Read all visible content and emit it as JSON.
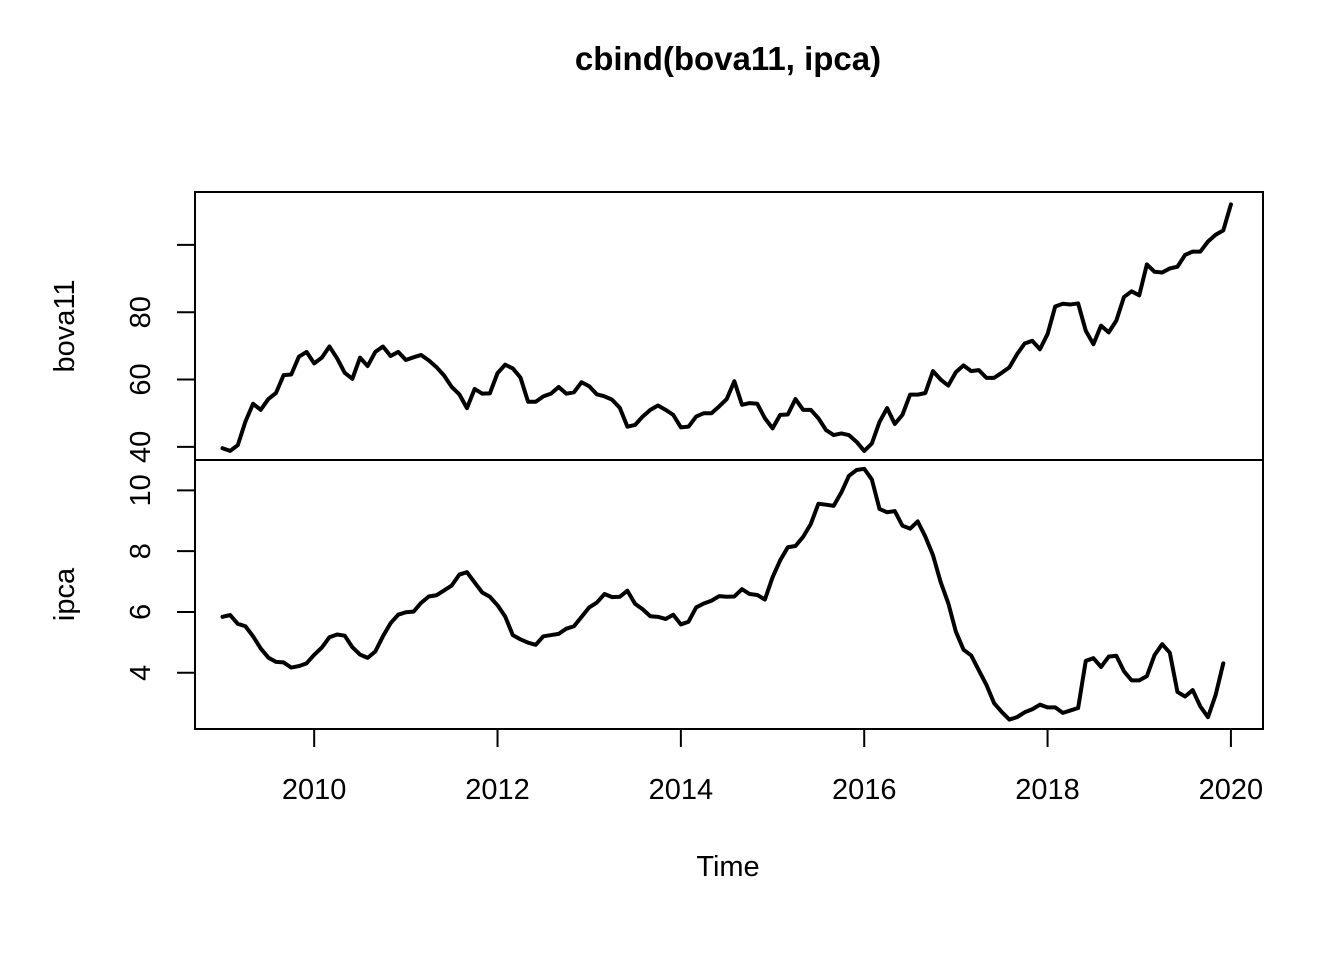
{
  "chart_data": {
    "type": "line",
    "title": "cbind(bova11, ipca)",
    "xlabel": "Time",
    "x_ticks": [
      2010,
      2012,
      2014,
      2016,
      2018,
      2020
    ],
    "xlim": [
      2008.7,
      2020.35
    ],
    "x_start": 2009.0,
    "x_step": 0.08333333,
    "panels": [
      {
        "name": "bova11",
        "ylabel": "bova11",
        "y_ticks": [
          40,
          60,
          80,
          100
        ],
        "y_tick_labels": [
          "40",
          "60",
          "80",
          ""
        ],
        "ylim": [
          36.1,
          115.7
        ],
        "values": [
          39.6,
          38.8,
          40.5,
          47.5,
          52.8,
          51.0,
          54.2,
          56.0,
          61.3,
          61.5,
          66.8,
          68.2,
          64.8,
          66.5,
          69.8,
          66.3,
          62.0,
          60.2,
          66.5,
          64.0,
          68.2,
          69.8,
          67.0,
          68.2,
          65.8,
          66.6,
          67.3,
          65.7,
          63.7,
          61.2,
          57.8,
          55.6,
          51.5,
          57.2,
          55.8,
          55.9,
          61.9,
          64.4,
          63.3,
          60.6,
          53.4,
          53.4,
          55.0,
          55.8,
          57.8,
          55.8,
          56.2,
          59.2,
          58.0,
          55.6,
          55.0,
          54.0,
          51.6,
          46.0,
          46.5,
          49.0,
          51.0,
          52.3,
          51.0,
          49.5,
          45.8,
          46.0,
          49.0,
          50.0,
          50.0,
          52.0,
          54.2,
          59.5,
          52.5,
          53.0,
          52.8,
          48.5,
          45.5,
          49.5,
          49.6,
          54.2,
          51.0,
          51.0,
          48.5,
          45.0,
          43.5,
          44.0,
          43.5,
          41.5,
          38.8,
          41.0,
          47.4,
          51.5,
          46.8,
          49.5,
          55.5,
          55.5,
          56.0,
          62.5,
          60.0,
          58.2,
          62.2,
          64.2,
          62.5,
          62.8,
          60.5,
          60.5,
          62.0,
          63.6,
          67.5,
          70.7,
          71.5,
          69.0,
          73.5,
          81.7,
          82.5,
          82.3,
          82.6,
          74.5,
          70.5,
          76.0,
          74.0,
          77.5,
          84.5,
          86.2,
          85.0,
          94.2,
          92.0,
          91.8,
          93.0,
          93.5,
          97.0,
          98.0,
          98.0,
          101.0,
          103.0,
          104.3,
          112.0
        ]
      },
      {
        "name": "ipca",
        "ylabel": "ipca",
        "y_ticks": [
          4,
          6,
          8,
          10
        ],
        "y_tick_labels": [
          "4",
          "6",
          "8",
          "10"
        ],
        "ylim": [
          2.15,
          11.0
        ],
        "values": [
          5.84,
          5.9,
          5.61,
          5.53,
          5.2,
          4.8,
          4.5,
          4.36,
          4.34,
          4.17,
          4.22,
          4.31,
          4.59,
          4.83,
          5.17,
          5.26,
          5.22,
          4.84,
          4.6,
          4.49,
          4.7,
          5.2,
          5.63,
          5.91,
          5.99,
          6.01,
          6.3,
          6.51,
          6.55,
          6.71,
          6.87,
          7.23,
          7.31,
          6.97,
          6.64,
          6.5,
          6.22,
          5.85,
          5.24,
          5.1,
          4.99,
          4.92,
          5.2,
          5.24,
          5.28,
          5.45,
          5.53,
          5.84,
          6.15,
          6.31,
          6.59,
          6.49,
          6.5,
          6.7,
          6.27,
          6.09,
          5.86,
          5.84,
          5.77,
          5.91,
          5.59,
          5.68,
          6.15,
          6.28,
          6.37,
          6.52,
          6.5,
          6.51,
          6.75,
          6.59,
          6.56,
          6.41,
          7.14,
          7.7,
          8.13,
          8.17,
          8.47,
          8.89,
          9.56,
          9.53,
          9.49,
          9.93,
          10.48,
          10.67,
          10.71,
          10.36,
          9.39,
          9.28,
          9.32,
          8.84,
          8.74,
          8.98,
          8.48,
          7.87,
          6.99,
          6.29,
          5.35,
          4.76,
          4.57,
          4.08,
          3.6,
          3.0,
          2.71,
          2.46,
          2.54,
          2.7,
          2.8,
          2.95,
          2.86,
          2.86,
          2.68,
          2.76,
          2.84,
          4.39,
          4.48,
          4.19,
          4.53,
          4.56,
          4.05,
          3.75,
          3.75,
          3.89,
          4.58,
          4.94,
          4.66,
          3.37,
          3.22,
          3.43,
          2.89,
          2.54,
          3.27,
          4.31
        ]
      }
    ],
    "grid": false,
    "legend": "none"
  }
}
